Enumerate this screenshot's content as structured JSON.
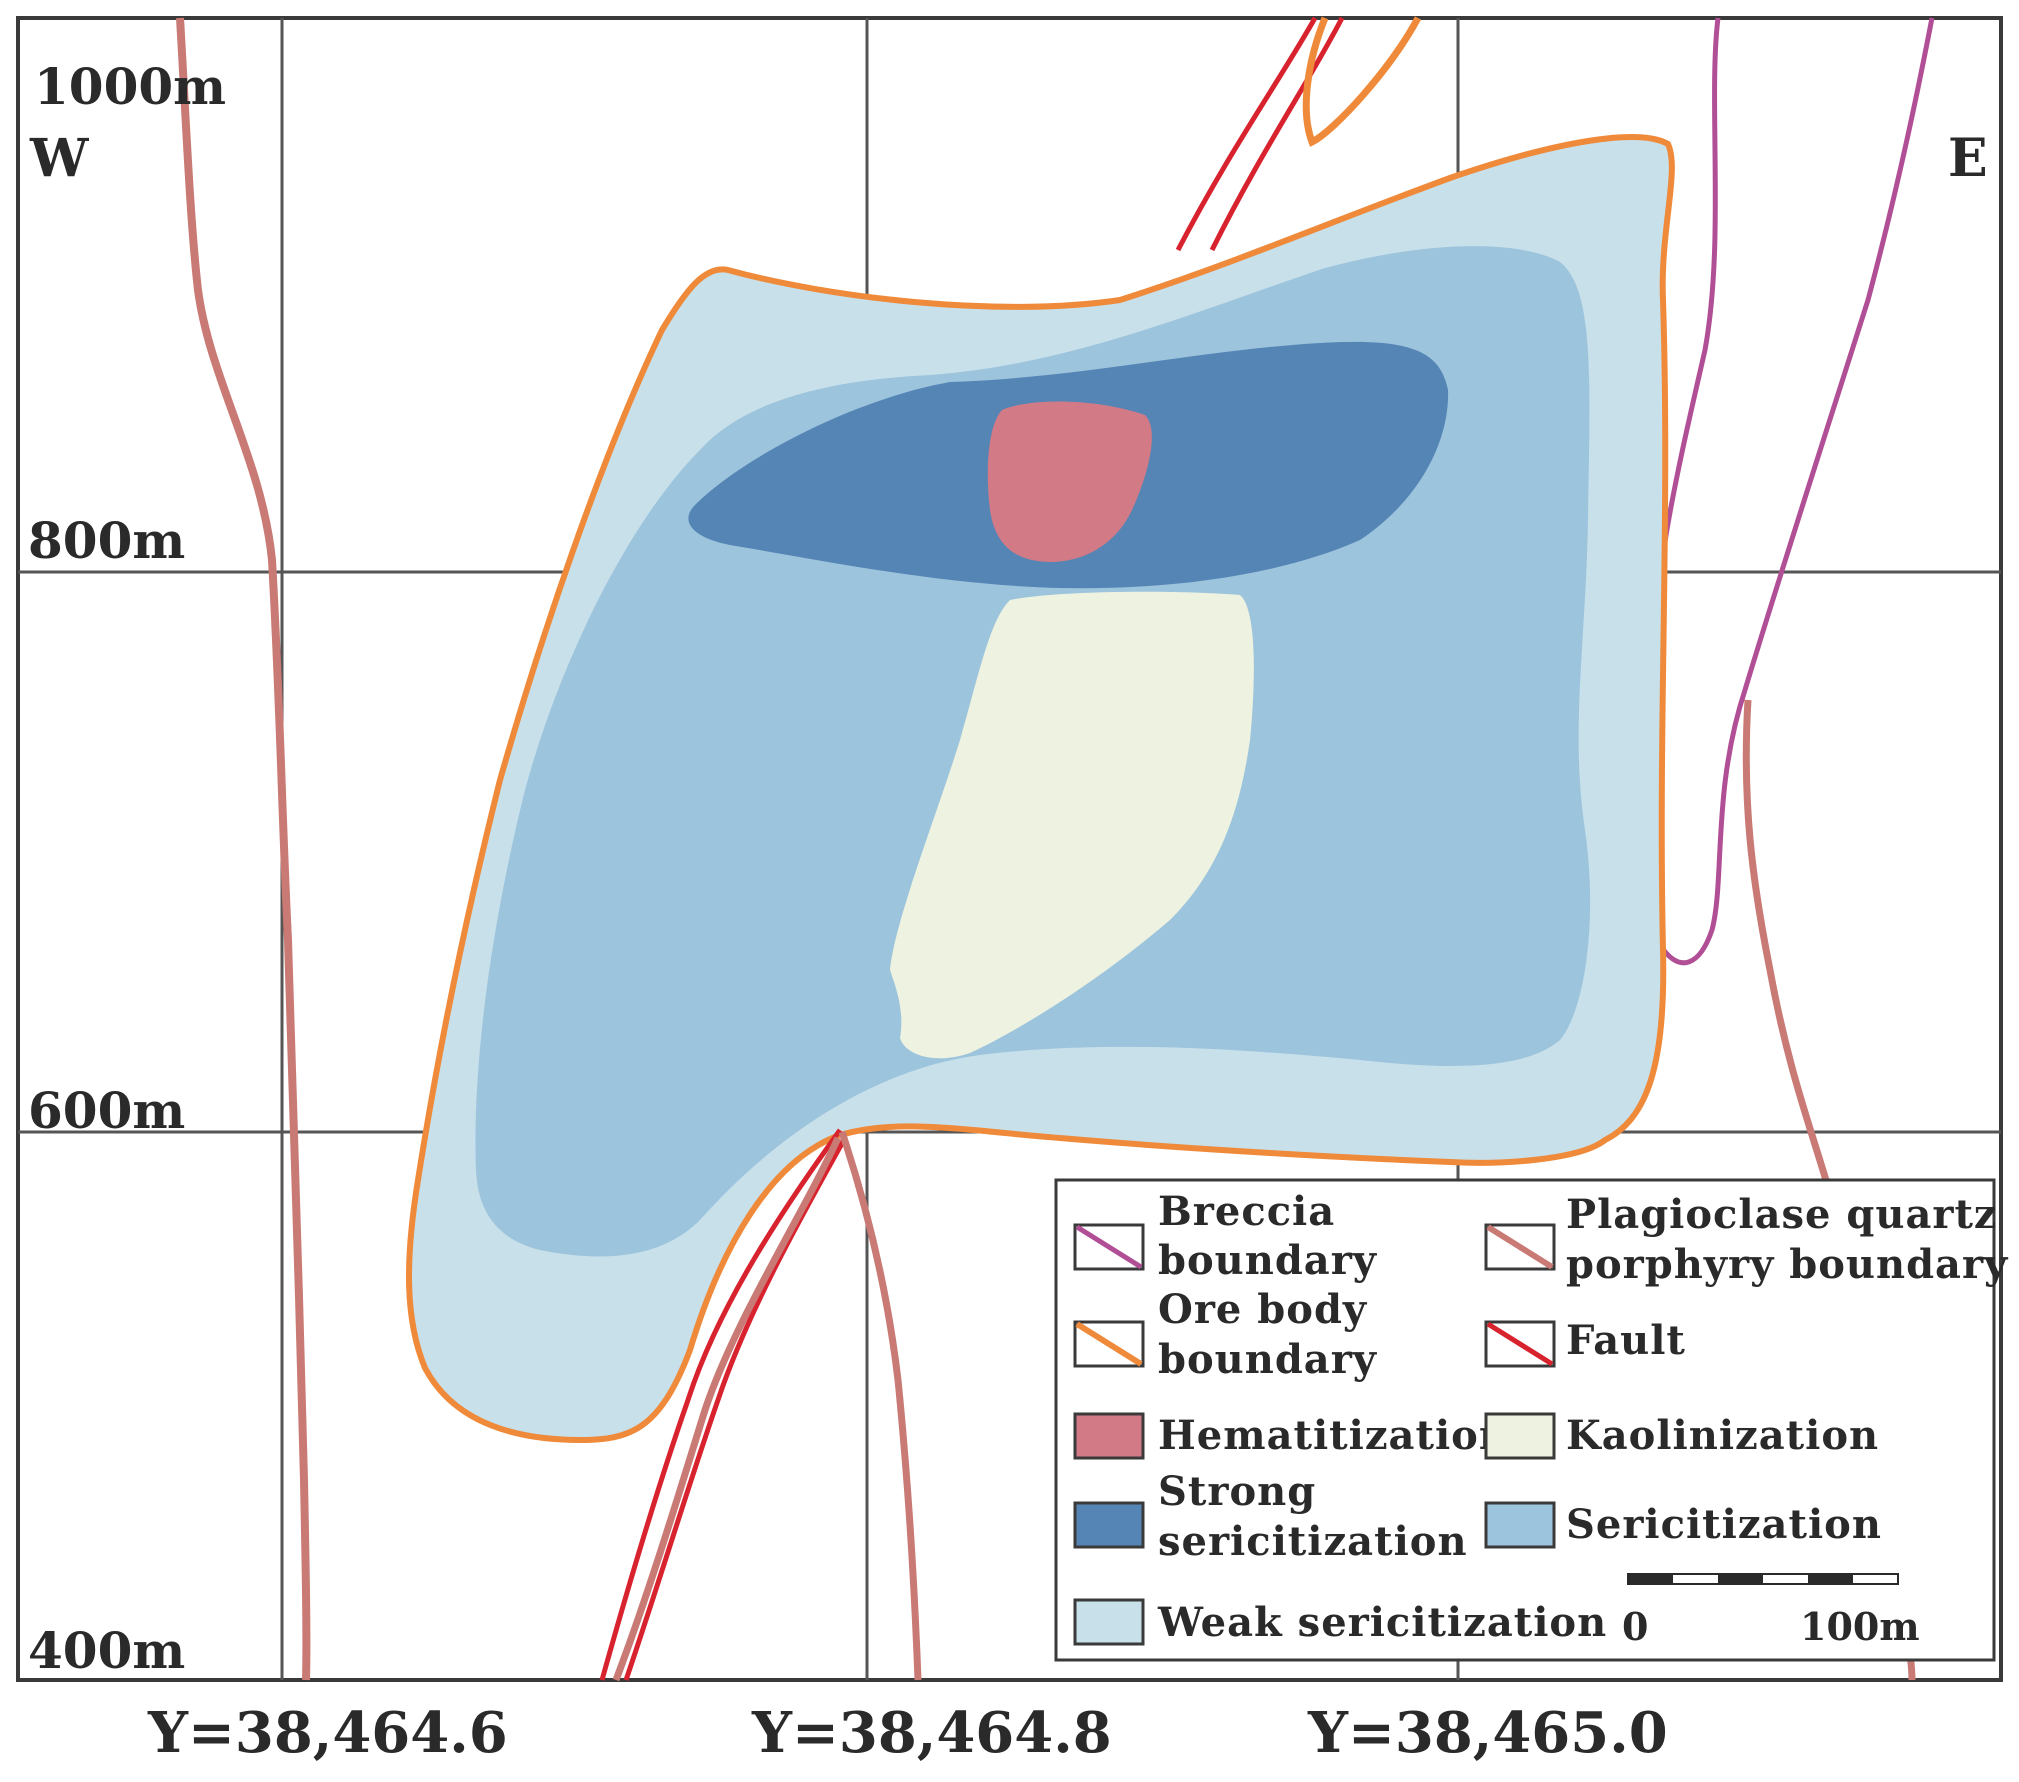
{
  "elevation_labels": [
    "1000m",
    "800m",
    "600m",
    "400m"
  ],
  "direction_labels": {
    "west": "W",
    "east": "E"
  },
  "x_axis_labels": [
    "Y=38,464.6",
    "Y=38,464.8",
    "Y=38,465.0"
  ],
  "legend": {
    "breccia_line1": "Breccia",
    "breccia_line2": "boundary",
    "plagioclase_line1": "Plagioclase quartz",
    "plagioclase_line2": "porphyry boundary",
    "orebody_line1": "Ore body",
    "orebody_line2": "boundary",
    "fault": "Fault",
    "hematitization": "Hematitization",
    "kaolinization": "Kaolinization",
    "strong_line1": "Strong",
    "strong_line2": "sericitization",
    "sericitization": "Sericitization",
    "weak": "Weak sericitization"
  },
  "scale_bar": {
    "start": "0",
    "end": "100m"
  },
  "colors": {
    "breccia": "#b14f96",
    "plagioclase": "#c97a74",
    "orebody": "#ef8a3a",
    "fault": "#d8232f",
    "hematitization": "#d27a85",
    "kaolinization": "#eef2e0",
    "strong_sericitization": "#5585b5",
    "sericitization": "#9dc4dd",
    "weak_sericitization": "#c8e0ea"
  }
}
